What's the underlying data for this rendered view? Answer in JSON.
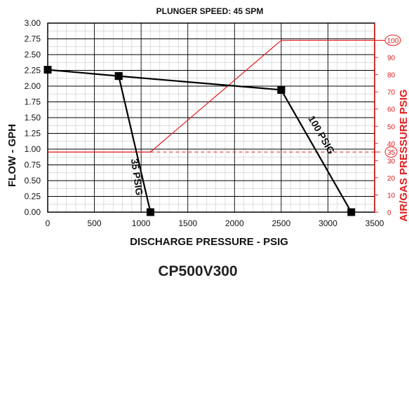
{
  "chart_data": {
    "type": "line",
    "title": "PLUNGER SPEED: 45 SPM",
    "subtitle": "CP500V300",
    "xlabel": "DISCHARGE PRESSURE - PSIG",
    "ylabel": "FLOW - GPH",
    "y2label": "AIR/GAS PRESSURE PSIG",
    "xlim": [
      0,
      3500
    ],
    "ylim": [
      0,
      3.0
    ],
    "y2lim": [
      0,
      110
    ],
    "x_ticks": [
      0,
      500,
      1000,
      1500,
      2000,
      2500,
      3000,
      3500
    ],
    "x_tick_labels": [
      "0",
      "500",
      "1000",
      "1500",
      "2000",
      "2500",
      "3000",
      "3500"
    ],
    "y_ticks": [
      0,
      0.25,
      0.5,
      0.75,
      1.0,
      1.25,
      1.5,
      1.75,
      2.0,
      2.25,
      2.5,
      2.75,
      3.0
    ],
    "y_tick_labels": [
      "0.00",
      "0.25",
      "0.50",
      "0.75",
      "1.00",
      "1.25",
      "1.50",
      "1.75",
      "2.00",
      "2.25",
      "2.50",
      "2.75",
      "3.00"
    ],
    "y2_ticks": [
      0,
      10,
      20,
      30,
      40,
      50,
      60,
      70,
      80,
      90
    ],
    "y2_tick_labels": [
      "0",
      "10",
      "20",
      "30",
      "40",
      "50",
      "60",
      "70",
      "80",
      "90"
    ],
    "y2_circled": [
      {
        "value": 35,
        "label": "35"
      },
      {
        "value": 100,
        "label": "100"
      }
    ],
    "grid": true,
    "minor_grid": true,
    "series": [
      {
        "name": "",
        "color": "#000000",
        "markers": true,
        "points": [
          [
            0,
            2.26
          ],
          [
            760,
            2.16
          ],
          [
            2500,
            1.94
          ]
        ]
      },
      {
        "name": "35 PSIG",
        "color": "#000000",
        "markers": true,
        "points": [
          [
            760,
            2.16
          ],
          [
            1100,
            0.0
          ]
        ]
      },
      {
        "name": "100 PSIG",
        "color": "#000000",
        "markers": true,
        "points": [
          [
            2500,
            1.94
          ],
          [
            3250,
            0.0
          ]
        ]
      },
      {
        "name": "",
        "color": "#e31b1b",
        "axis": "y2",
        "markers": false,
        "points": [
          [
            0,
            35
          ],
          [
            1100,
            35
          ],
          [
            2500,
            100
          ],
          [
            3700,
            100
          ]
        ]
      }
    ],
    "reference_lines": [
      {
        "axis": "y2",
        "value": 35,
        "color": "#e31b1b",
        "style": "dashed",
        "from_x": 1100
      }
    ],
    "annotations": [
      {
        "text": "35 PSIG",
        "rotation": 82
      },
      {
        "text": "100 PSIG",
        "rotation": 60
      }
    ],
    "colors": {
      "primary": "#000000",
      "secondary_axis": "#e31b1b",
      "grid": "#cfcfcf",
      "grid_major": "#000000"
    }
  }
}
